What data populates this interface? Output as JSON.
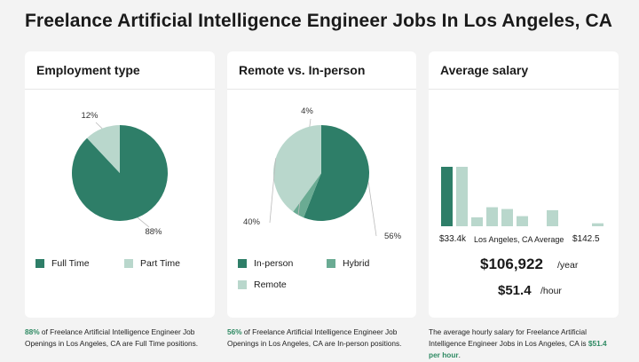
{
  "page_title": "Freelance Artificial Intelligence Engineer Jobs In Los Angeles, CA",
  "colors": {
    "dark_green": "#2e7e68",
    "mid_green": "#6aab93",
    "light_green": "#b9d7cc",
    "highlight": "#2f8a63"
  },
  "chart_data": [
    {
      "type": "pie",
      "title": "Employment type",
      "labels": [
        "Full Time",
        "Part Time"
      ],
      "values": [
        88,
        12
      ],
      "value_labels": [
        "88%",
        "12%"
      ],
      "colors": [
        "#2e7e68",
        "#b9d7cc"
      ]
    },
    {
      "type": "pie",
      "title": "Remote vs. In-person",
      "labels": [
        "In-person",
        "Hybrid",
        "Remote"
      ],
      "values": [
        56,
        4,
        40
      ],
      "value_labels": [
        "56%",
        "4%",
        "40%"
      ],
      "colors": [
        "#2e7e68",
        "#6aab93",
        "#b9d7cc"
      ]
    },
    {
      "type": "bar",
      "title": "Average salary",
      "values": [
        100,
        100,
        15,
        32,
        29,
        17,
        0,
        27,
        0,
        0,
        5
      ],
      "highlight_index": 0,
      "colors": [
        "#2e7e68",
        "#b9d7cc"
      ],
      "x_min_label": "$33.4k",
      "x_mid_label": "Los Angeles, CA Average",
      "x_max_label": "$142.5"
    }
  ],
  "salary": {
    "yearly_value": "$106,922",
    "yearly_unit": "/year",
    "hourly_value": "$51.4",
    "hourly_unit": "/hour"
  },
  "footer": {
    "employment": {
      "highlight": "88%",
      "text": " of Freelance Artificial Intelligence Engineer Job Openings in Los Angeles, CA are Full Time positions."
    },
    "remote": {
      "highlight": "56%",
      "text": " of Freelance Artificial Intelligence Engineer Job Openings in Los Angeles, CA are In-person positions."
    },
    "salary": {
      "text": "The average hourly salary for Freelance Artificial Intelligence Engineer Jobs in Los Angeles, CA is ",
      "highlight": "$51.4 per hour",
      "end": "."
    }
  }
}
